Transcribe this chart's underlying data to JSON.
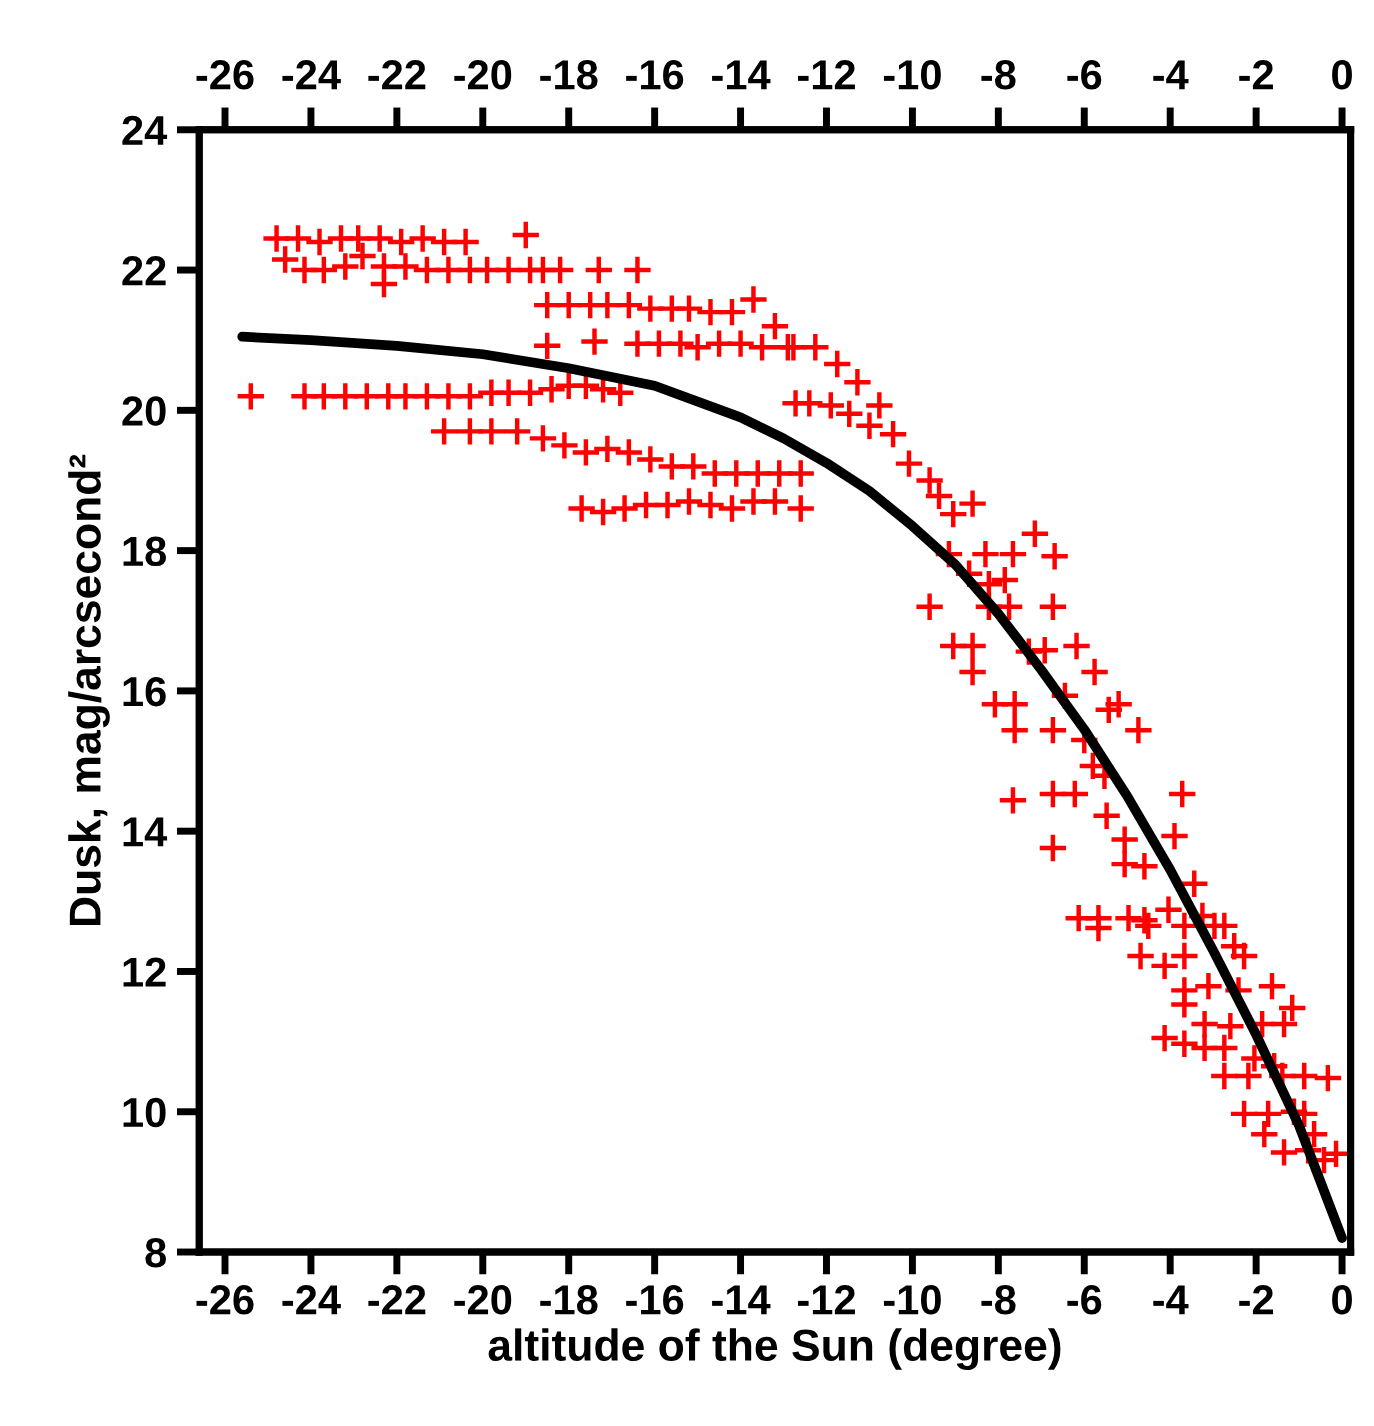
{
  "chart_data": {
    "type": "scatter",
    "xlabel": "altitude of the Sun (degree)",
    "ylabel": "Dusk, mag/arcsecond²",
    "xlim": [
      -26.6,
      0.2
    ],
    "ylim": [
      8,
      24
    ],
    "xticks": [
      -26,
      -24,
      -22,
      -20,
      -18,
      -16,
      -14,
      -12,
      -10,
      -8,
      -6,
      -4,
      -2,
      0
    ],
    "yticks": [
      8,
      10,
      12,
      14,
      16,
      18,
      20,
      22,
      24
    ],
    "x2lim": [
      -26.6,
      0.2
    ],
    "x2ticks": [
      -26,
      -24,
      -22,
      -20,
      -18,
      -16,
      -14,
      -12,
      -10,
      -8,
      -6,
      -4,
      -2,
      0
    ],
    "grid": false,
    "legend": false,
    "series": [
      {
        "marker": "cross",
        "color": "#ff0000",
        "x": [
          -24.8,
          -24.3,
          -23.8,
          -23.3,
          -22.9,
          -22.4,
          -21.9,
          -21.4,
          -20.9,
          -20.4,
          -19.0,
          -24.6,
          -24.15,
          -23.7,
          -23.2,
          -22.8,
          -22.3,
          -21.8,
          -21.3,
          -20.8,
          -20.3,
          -19.9,
          -19.4,
          -18.9,
          -18.6,
          -18.2,
          -17.3,
          -16.4,
          -22.3,
          -18.5,
          -18.0,
          -17.5,
          -17.1,
          -16.6,
          -16.1,
          -15.6,
          -15.2,
          -14.7,
          -14.2,
          -13.7,
          -13.2,
          -18.5,
          -17.4,
          -16.4,
          -15.9,
          -15.4,
          -15.0,
          -14.5,
          -14.0,
          -13.5,
          -12.9,
          -25.4,
          -24.15,
          -23.7,
          -23.2,
          -22.7,
          -22.2,
          -21.8,
          -21.3,
          -20.8,
          -20.3,
          -19.8,
          -19.4,
          -18.9,
          -18.4,
          -18.0,
          -17.6,
          -17.2,
          -16.8,
          -20.9,
          -20.3,
          -19.8,
          -19.2,
          -18.6,
          -18.1,
          -17.6,
          -17.1,
          -16.6,
          -16.1,
          -15.6,
          -15.1,
          -14.6,
          -14.1,
          -13.6,
          -13.1,
          -12.6,
          -17.7,
          -17.2,
          -16.7,
          -16.2,
          -15.7,
          -15.2,
          -14.7,
          -14.2,
          -13.7,
          -13.2,
          -12.6,
          -12.77,
          -12.26,
          -11.75,
          -11.28,
          -12.72,
          -12.4,
          -11.9,
          -10.77,
          -11.47,
          -11.0,
          -10.45,
          -10.08,
          -9.6,
          -9.38,
          -9.05,
          -8.6,
          -7.15,
          -6.69,
          -8.3,
          -7.66,
          -9.15,
          -8.68,
          -8.22,
          -7.85,
          -9.6,
          -8.22,
          -7.75,
          -6.73,
          -9.05,
          -8.6,
          -7.29,
          -6.92,
          -6.18,
          -8.6,
          -5.76,
          -8.08,
          -7.62,
          -6.45,
          -5.2,
          -5.43,
          -7.62,
          -6.73,
          -4.74,
          -6.0,
          -5.8,
          -5.53,
          -7.66,
          -6.73,
          -6.22,
          -3.72,
          -5.48,
          -3.9,
          -5.06,
          -6.73,
          -5.06,
          -4.6,
          -3.44,
          -4.04,
          -6.13,
          -5.67,
          -4.97,
          -4.6,
          -3.25,
          -2.74,
          -5.67,
          -4.51,
          -3.67,
          -2.97,
          -4.69,
          -4.13,
          -3.67,
          -2.51,
          -2.28,
          -3.67,
          -3.11,
          -2.41,
          -1.63,
          -3.67,
          -1.16,
          -3.2,
          -2.6,
          -1.86,
          -1.35,
          -4.13,
          -3.67,
          -3.2,
          -2.74,
          -2.04,
          -2.74,
          -2.18,
          -1.58,
          -1.39,
          -0.88,
          -0.33,
          -2.28,
          -1.72,
          -1.12,
          -0.88,
          -1.81,
          -0.65,
          -1.35,
          -0.79,
          -0.42,
          -0.14
        ],
        "values": [
          22.45,
          22.45,
          22.4,
          22.45,
          22.45,
          22.45,
          22.4,
          22.45,
          22.4,
          22.4,
          22.5,
          22.15,
          22.0,
          22.0,
          22.05,
          22.2,
          22.05,
          22.05,
          22.0,
          22.0,
          22.0,
          22.0,
          22.0,
          22.0,
          22.0,
          22.0,
          22.0,
          22.0,
          21.8,
          21.5,
          21.5,
          21.5,
          21.5,
          21.5,
          21.45,
          21.45,
          21.45,
          21.4,
          21.4,
          21.58,
          21.2,
          20.92,
          20.98,
          20.95,
          20.95,
          20.95,
          20.9,
          20.95,
          20.95,
          20.9,
          20.9,
          20.2,
          20.2,
          20.2,
          20.2,
          20.2,
          20.2,
          20.2,
          20.2,
          20.2,
          20.2,
          20.25,
          20.25,
          20.25,
          20.3,
          20.35,
          20.35,
          20.3,
          20.25,
          19.7,
          19.7,
          19.7,
          19.7,
          19.6,
          19.5,
          19.4,
          19.45,
          19.4,
          19.3,
          19.2,
          19.2,
          19.1,
          19.1,
          19.1,
          19.1,
          19.1,
          18.6,
          18.55,
          18.6,
          18.65,
          18.65,
          18.7,
          18.65,
          18.6,
          18.7,
          18.7,
          18.6,
          20.9,
          20.9,
          20.66,
          20.4,
          20.1,
          20.1,
          20.07,
          20.07,
          19.95,
          19.78,
          19.66,
          19.24,
          19.0,
          18.78,
          18.52,
          18.67,
          18.24,
          17.92,
          17.95,
          17.95,
          17.95,
          17.67,
          17.52,
          17.58,
          17.2,
          17.2,
          17.2,
          17.2,
          16.64,
          16.64,
          16.56,
          16.58,
          16.64,
          16.27,
          16.27,
          15.81,
          15.81,
          15.93,
          15.81,
          15.73,
          15.44,
          15.44,
          15.44,
          15.3,
          14.93,
          14.79,
          14.44,
          14.53,
          14.53,
          14.53,
          14.22,
          13.93,
          13.88,
          13.76,
          13.53,
          13.5,
          13.25,
          12.88,
          12.76,
          12.76,
          12.76,
          12.73,
          12.79,
          12.65,
          12.62,
          12.65,
          12.65,
          12.65,
          12.22,
          12.08,
          12.22,
          12.36,
          12.22,
          11.73,
          11.79,
          11.73,
          11.79,
          11.53,
          11.48,
          11.25,
          11.22,
          11.25,
          11.25,
          11.05,
          10.97,
          10.91,
          10.91,
          10.76,
          10.51,
          10.51,
          10.65,
          10.51,
          10.51,
          10.48,
          9.97,
          9.97,
          10.0,
          9.97,
          9.68,
          9.68,
          9.42,
          9.45,
          9.31,
          9.4
        ]
      },
      {
        "type": "line",
        "color": "#000000",
        "line_style": "solid",
        "marker": "none",
        "x": [
          -25.6,
          -24,
          -22,
          -20,
          -18,
          -16,
          -14,
          -13,
          -12,
          -11,
          -10,
          -9,
          -8,
          -7,
          -6,
          -5,
          -4,
          -3,
          -2,
          -1,
          0
        ],
        "values": [
          21.05,
          21.0,
          20.92,
          20.8,
          20.6,
          20.35,
          19.9,
          19.6,
          19.25,
          18.85,
          18.35,
          17.8,
          17.1,
          16.3,
          15.45,
          14.5,
          13.45,
          12.3,
          11.1,
          9.8,
          8.2
        ]
      }
    ]
  }
}
